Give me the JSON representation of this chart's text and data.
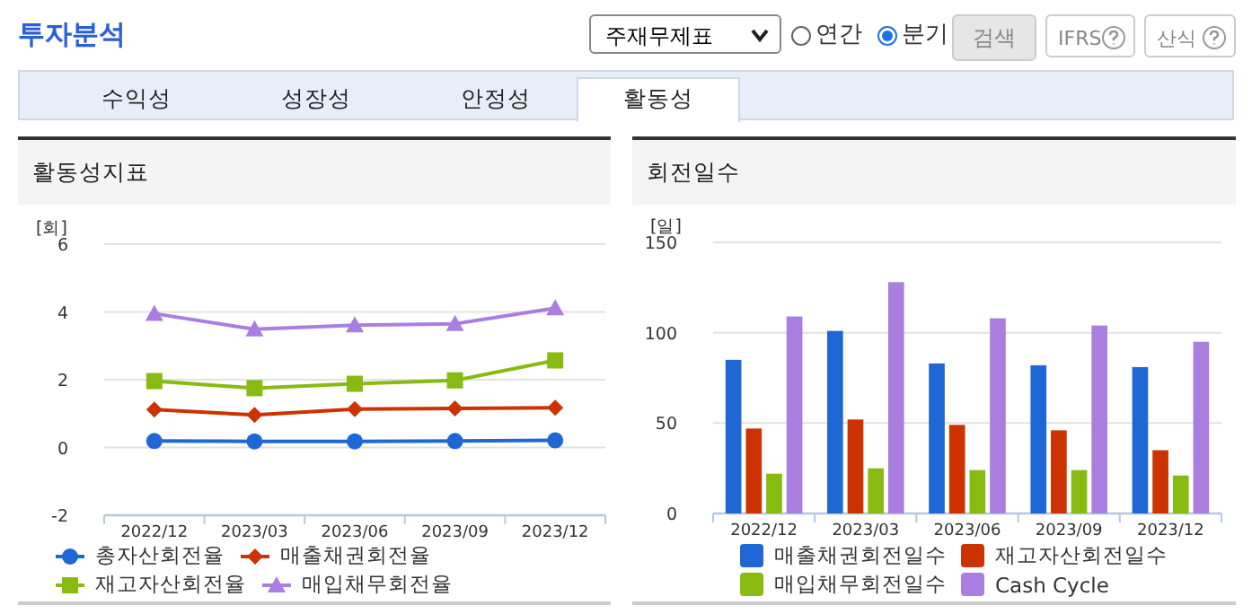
{
  "chart_data": [
    {
      "type": "other",
      "title": "투자분석",
      "annotations": [
        "주재무제표",
        "연간",
        "분기",
        "검색",
        "IFRS",
        "산식",
        "수익성",
        "성장성",
        "안정성",
        "활동성"
      ]
    },
    {
      "type": "line",
      "title": "활동성지표",
      "ylabel": "[회]",
      "categories": [
        "2022/12",
        "2023/03",
        "2023/06",
        "2023/09",
        "2023/12"
      ],
      "ylim": [
        -2,
        6
      ],
      "yticks": [
        -2,
        0,
        2,
        4,
        6
      ],
      "grid": "y",
      "legend": "bottom",
      "line_style": "solid",
      "series": [
        {
          "name": "총자산회전율",
          "color": "#2067d6",
          "marker": "circle",
          "values": [
            0.19,
            0.18,
            0.18,
            0.19,
            0.21
          ]
        },
        {
          "name": "매출채권회전율",
          "color": "#cc3300",
          "marker": "diamond",
          "values": [
            1.12,
            0.96,
            1.13,
            1.15,
            1.17
          ]
        },
        {
          "name": "재고자산회전율",
          "color": "#88bb11",
          "marker": "square",
          "values": [
            1.96,
            1.75,
            1.88,
            1.98,
            2.57
          ]
        },
        {
          "name": "매입채무회전율",
          "color": "#aa7ee0",
          "marker": "triangle",
          "values": [
            3.95,
            3.49,
            3.61,
            3.65,
            4.11
          ]
        }
      ]
    },
    {
      "type": "bar",
      "title": "회전일수",
      "ylabel": "[일]",
      "categories": [
        "2022/12",
        "2023/03",
        "2023/06",
        "2023/09",
        "2023/12"
      ],
      "ylim": [
        0,
        150
      ],
      "yticks": [
        0,
        50,
        100,
        150
      ],
      "grid": "y",
      "legend": "bottom",
      "series": [
        {
          "name": "매출채권회전일수",
          "color": "#2067d6",
          "values": [
            85,
            101,
            83,
            82,
            81
          ]
        },
        {
          "name": "재고자산회전일수",
          "color": "#cc3300",
          "values": [
            47,
            52,
            49,
            46,
            35
          ]
        },
        {
          "name": "매입채무회전일수",
          "color": "#88bb11",
          "values": [
            22,
            25,
            24,
            24,
            21
          ]
        },
        {
          "name": "Cash Cycle",
          "color": "#aa7ee0",
          "values": [
            109,
            128,
            108,
            104,
            95
          ]
        }
      ]
    }
  ]
}
